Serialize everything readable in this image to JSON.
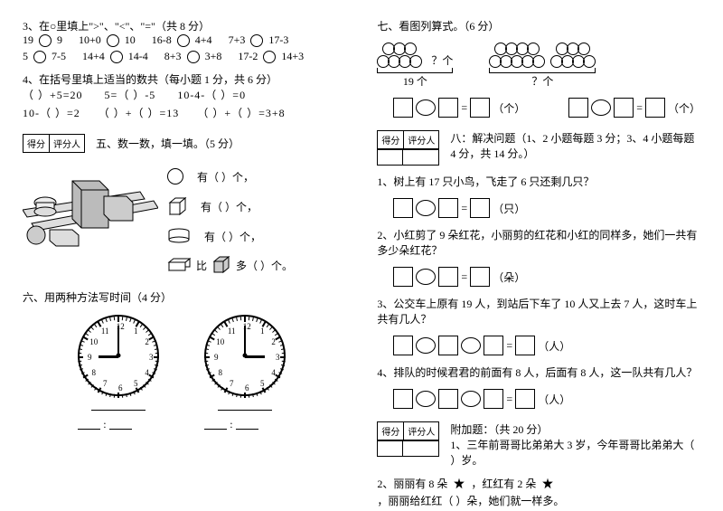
{
  "q3": {
    "title": "3、在○里填上\">\"、\"<\"、\"=\"（共 8 分）",
    "items": [
      "19",
      "9",
      "10+0",
      "10",
      "16-8",
      "4+4",
      "7+3",
      "17-3",
      "5",
      "7-5",
      "14+4",
      "14-4",
      "8+3",
      "3+8",
      "17-2",
      "14+3"
    ]
  },
  "q4": {
    "title": "4、在括号里填上适当的数共（每小题 1 分，共 6 分）",
    "items": [
      "（  ）+5=20",
      "5=（  ）-5",
      "10-4-（  ）=0",
      "10-（  ）=2",
      "（  ）+（  ）=13",
      "（  ）+（  ）=3+8"
    ]
  },
  "scoreLabels": [
    "得分",
    "评分人"
  ],
  "q5": {
    "title": "五、数一数，填一填。（5 分）",
    "lines": [
      "有（     ）个，",
      "有（     ）个，",
      "有（     ）个，",
      "比",
      "多（    ）个。"
    ]
  },
  "q6": {
    "title": "六、用两种方法写时间（4 分）",
    "clock1": {
      "hourAngle": 270,
      "minAngle": 0,
      "numbers": [
        "12",
        "1",
        "2",
        "3",
        "4",
        "5",
        "6",
        "7",
        "8",
        "9",
        "10",
        "11"
      ]
    },
    "clock2": {
      "hourAngle": 90,
      "minAngle": 0,
      "numbers": [
        "12",
        "1",
        "2",
        "3",
        "4",
        "5",
        "6",
        "7",
        "8",
        "9",
        "10",
        "11"
      ]
    }
  },
  "q7": {
    "title": "七、看图列算式。（6 分）",
    "q_mark": "？个",
    "count_label": "19 个",
    "unit": "（个）"
  },
  "q8": {
    "title": "八：解决问题（1、2 小题每题 3 分；3、4 小题每题 4 分，共 14 分。）",
    "p1": "1、树上有 17 只小鸟，飞走了 6 只还剩几只？",
    "u1": "（只）",
    "p2": "2、小红剪了 9 朵红花，小丽剪的红花和小红的同样多，她们一共有多少朵红花？",
    "u2": "（朵）",
    "p3": "3、公交车上原有 19 人，到站后下车了 10 人又上去 7 人，这时车上共有几人？",
    "u3": "（人）",
    "p3_op": "=",
    "p4": "4、排队的时候君君的前面有 8 人，后面有 8 人，这一队共有几人？",
    "u4": "（人）"
  },
  "extra": {
    "title": "附加题：（共 20 分）",
    "p1": "1、三年前哥哥比弟弟大 3 岁，今年哥哥比弟弟大（   ）岁。",
    "p2a": "2、丽丽有 8 朵",
    "p2b": "，红红有 2 朵",
    "p2c": "，丽丽给红红（     ）朵，她们就一样多。"
  },
  "eq": "="
}
